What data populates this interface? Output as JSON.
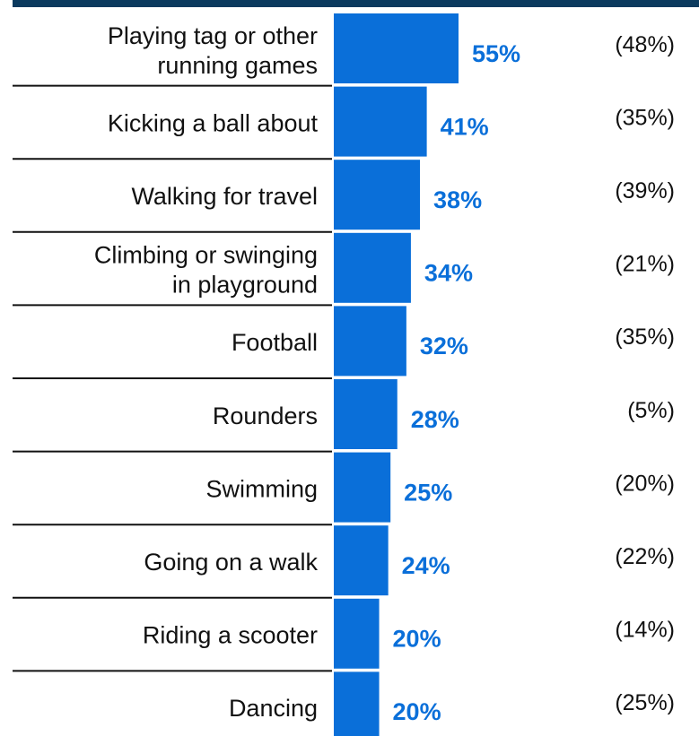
{
  "chart_data": {
    "type": "bar",
    "orientation": "horizontal",
    "categories": [
      [
        "Playing tag or other",
        "running games"
      ],
      [
        "Kicking a ball about"
      ],
      [
        "Walking for travel"
      ],
      [
        "Climbing or swinging",
        "in playground"
      ],
      [
        "Football"
      ],
      [
        "Rounders"
      ],
      [
        "Swimming"
      ],
      [
        "Going on a walk"
      ],
      [
        "Riding a scooter"
      ],
      [
        "Dancing"
      ]
    ],
    "values": [
      55,
      41,
      38,
      34,
      32,
      28,
      25,
      24,
      20,
      20
    ],
    "value_labels": [
      "55%",
      "41%",
      "38%",
      "34%",
      "32%",
      "28%",
      "25%",
      "24%",
      "20%",
      "20%"
    ],
    "comparison_values": [
      48,
      35,
      39,
      21,
      35,
      5,
      20,
      22,
      14,
      25
    ],
    "comparison_labels": [
      "(48%)",
      "(35%)",
      "(39%)",
      "(21%)",
      "(35%)",
      "(5%)",
      "(20%)",
      "(22%)",
      "(14%)",
      "(25%)"
    ],
    "xlim": [
      0,
      100
    ],
    "grid": false,
    "legend": "none",
    "colors": {
      "bar": "#0a6fd9",
      "value_label": "#0a6fd9",
      "top_rule": "#0b3a5e",
      "separator": "#111111"
    }
  }
}
